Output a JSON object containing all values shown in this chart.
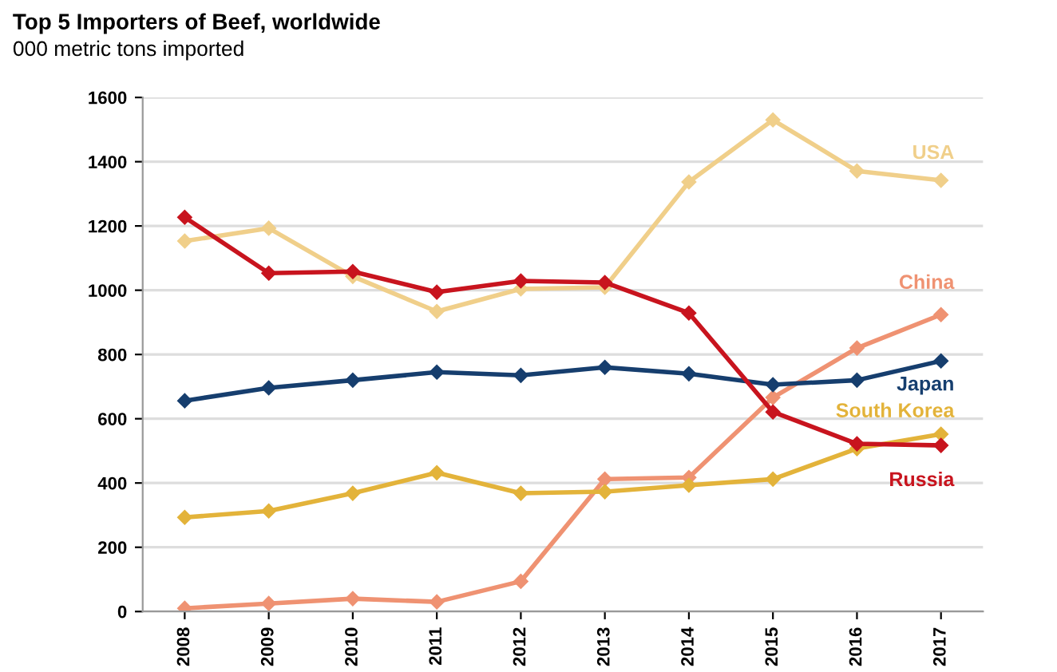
{
  "chart_data": {
    "type": "line",
    "title": "Top 5 Importers of Beef, worldwide",
    "subtitle": "000 metric tons imported",
    "categories": [
      "2008",
      "2009",
      "2010",
      "2011",
      "2012",
      "2013",
      "2014",
      "2015",
      "2016",
      "2017"
    ],
    "series": [
      {
        "name": "USA",
        "color": "#f0cf8a",
        "values": [
          1153,
          1193,
          1043,
          934,
          1004,
          1009,
          1337,
          1530,
          1371,
          1342
        ]
      },
      {
        "name": "China",
        "color": "#ef9272",
        "values": [
          10,
          25,
          40,
          30,
          94,
          412,
          417,
          666,
          820,
          924
        ]
      },
      {
        "name": "Japan",
        "color": "#163e6e",
        "values": [
          656,
          696,
          720,
          745,
          735,
          760,
          740,
          706,
          720,
          780
        ]
      },
      {
        "name": "South Korea",
        "color": "#e3b33a",
        "values": [
          293,
          313,
          368,
          432,
          368,
          373,
          393,
          412,
          507,
          552
        ]
      },
      {
        "name": "Russia",
        "color": "#c8141e",
        "values": [
          1227,
          1053,
          1058,
          994,
          1029,
          1024,
          929,
          621,
          522,
          517
        ]
      }
    ],
    "ylim": [
      0,
      1600
    ],
    "yticks": [
      0,
      200,
      400,
      600,
      800,
      1000,
      1200,
      1400,
      1600
    ],
    "grid": "y",
    "legend": false,
    "marker": "diamond",
    "line_style": "solid"
  }
}
